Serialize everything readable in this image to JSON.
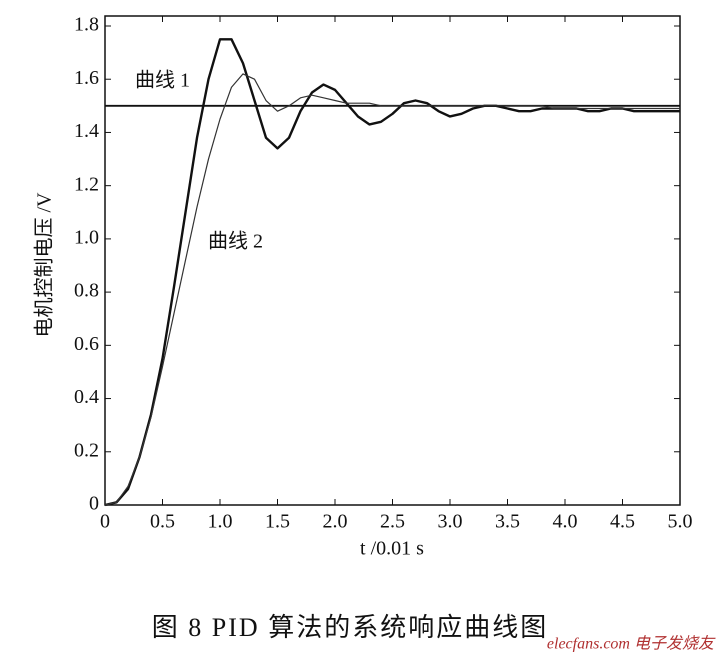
{
  "chart_data": {
    "type": "line",
    "x_label": "t /0.01 s",
    "y_label": "电机控制电压 /V",
    "caption": "图 8   PID 算法的系统响应曲线图",
    "watermark": "elecfans.com 电子发烧友",
    "x": [
      0,
      0.1,
      0.2,
      0.3,
      0.4,
      0.5,
      0.6,
      0.7,
      0.8,
      0.9,
      1.0,
      1.1,
      1.2,
      1.3,
      1.4,
      1.5,
      1.6,
      1.7,
      1.8,
      1.9,
      2.0,
      2.1,
      2.2,
      2.3,
      2.4,
      2.5,
      2.6,
      2.7,
      2.8,
      2.9,
      3.0,
      3.1,
      3.2,
      3.3,
      3.4,
      3.5,
      3.6,
      3.7,
      3.8,
      3.9,
      4.0,
      4.1,
      4.2,
      4.3,
      4.4,
      4.5,
      4.6,
      4.7,
      4.8,
      4.9,
      5.0
    ],
    "series": [
      {
        "name": "曲线 1",
        "color": "#111111",
        "values": [
          0,
          0.01,
          0.06,
          0.18,
          0.34,
          0.55,
          0.82,
          1.1,
          1.38,
          1.6,
          1.75,
          1.75,
          1.66,
          1.52,
          1.38,
          1.34,
          1.38,
          1.48,
          1.55,
          1.58,
          1.56,
          1.51,
          1.46,
          1.43,
          1.44,
          1.47,
          1.51,
          1.52,
          1.51,
          1.48,
          1.46,
          1.47,
          1.49,
          1.5,
          1.5,
          1.49,
          1.48,
          1.48,
          1.49,
          1.49,
          1.49,
          1.49,
          1.48,
          1.48,
          1.49,
          1.49,
          1.48,
          1.48,
          1.48,
          1.48,
          1.48
        ]
      },
      {
        "name": "曲线 2",
        "color": "#333333",
        "values": [
          0,
          0.01,
          0.07,
          0.18,
          0.33,
          0.52,
          0.72,
          0.92,
          1.12,
          1.3,
          1.45,
          1.57,
          1.62,
          1.6,
          1.52,
          1.48,
          1.5,
          1.53,
          1.54,
          1.53,
          1.52,
          1.51,
          1.51,
          1.51,
          1.5,
          1.5,
          1.5,
          1.5,
          1.5,
          1.5,
          1.5,
          1.5,
          1.5,
          1.5,
          1.5,
          1.5,
          1.5,
          1.5,
          1.5,
          1.49,
          1.49,
          1.49,
          1.49,
          1.49,
          1.49,
          1.49,
          1.49,
          1.49,
          1.49,
          1.49,
          1.49
        ]
      }
    ],
    "reference_line": 1.5,
    "xlim": [
      0,
      5
    ],
    "ylim": [
      0,
      1.8
    ],
    "xticks": [
      0,
      0.5,
      {
        "value": 1,
        "label": "1.0"
      },
      1.5,
      {
        "value": 2,
        "label": "2.0"
      },
      2.5,
      {
        "value": 3,
        "label": "3.0"
      },
      3.5,
      {
        "value": 4,
        "label": "4.0"
      },
      4.5,
      {
        "value": 5,
        "label": "5.0"
      }
    ],
    "yticks": [
      0,
      0.2,
      0.4,
      0.6,
      0.8,
      {
        "value": 1,
        "label": "1.0"
      },
      1.2,
      1.4,
      1.6,
      1.8
    ]
  }
}
